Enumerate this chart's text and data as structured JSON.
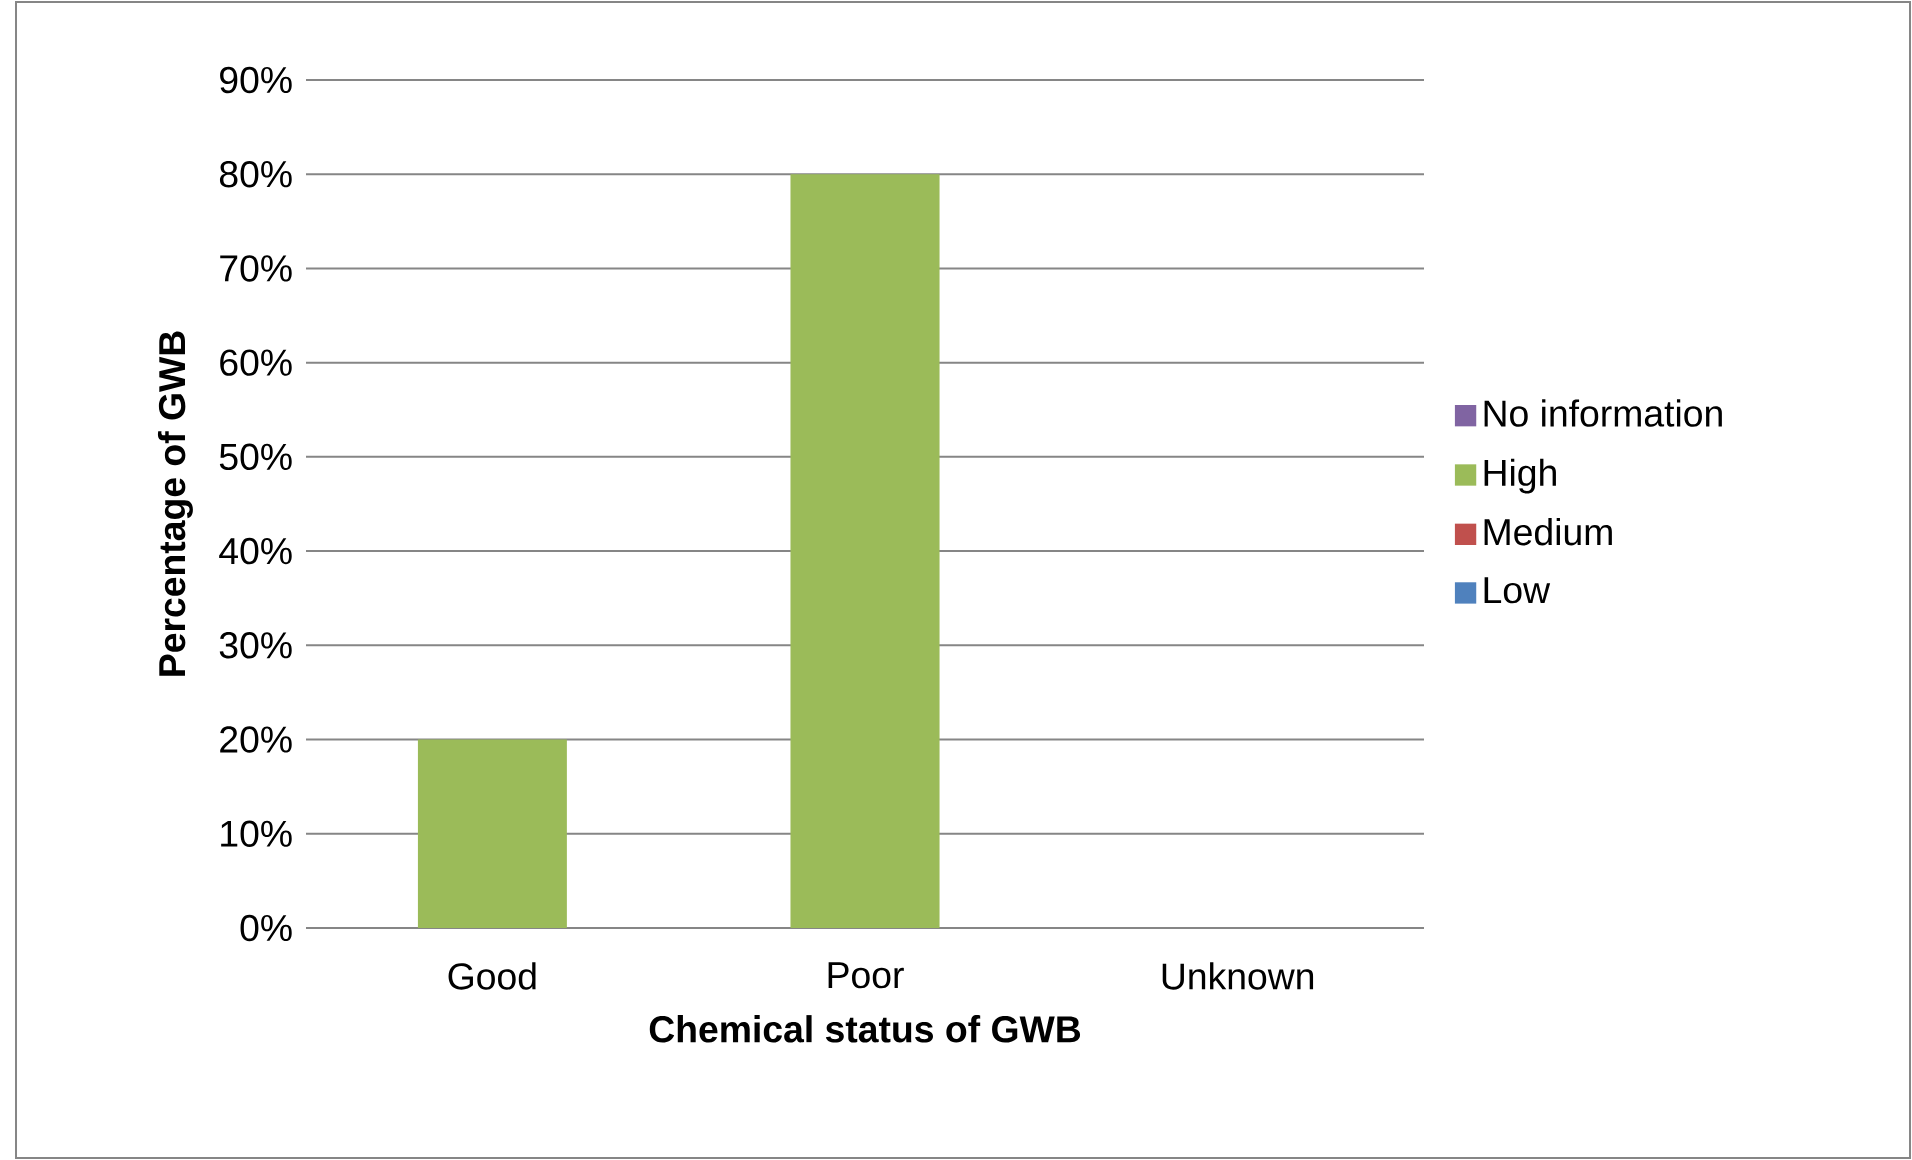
{
  "chart_data": {
    "type": "bar",
    "stacked": true,
    "xlabel": "Chemical status of GWB",
    "ylabel": "Percentage of GWB",
    "categories": [
      "Good",
      "Poor",
      "Unknown"
    ],
    "series": [
      {
        "name": "Low",
        "color": "#4f81bd",
        "values": [
          0,
          0,
          0
        ]
      },
      {
        "name": "Medium",
        "color": "#c0504d",
        "values": [
          0,
          0,
          0
        ]
      },
      {
        "name": "High",
        "color": "#9bbb59",
        "values": [
          20,
          80,
          0
        ]
      },
      {
        "name": "No information",
        "color": "#8064a2",
        "values": [
          0,
          0,
          0
        ]
      }
    ],
    "ylim": [
      0,
      90
    ],
    "yticks": [
      {
        "value": 0,
        "label": "0%"
      },
      {
        "value": 10,
        "label": "10%"
      },
      {
        "value": 20,
        "label": "20%"
      },
      {
        "value": 30,
        "label": "30%"
      },
      {
        "value": 40,
        "label": "40%"
      },
      {
        "value": 50,
        "label": "50%"
      },
      {
        "value": 60,
        "label": "60%"
      },
      {
        "value": 70,
        "label": "70%"
      },
      {
        "value": 80,
        "label": "80%"
      },
      {
        "value": 90,
        "label": "90%"
      }
    ],
    "grid": "y",
    "legend": "right"
  }
}
